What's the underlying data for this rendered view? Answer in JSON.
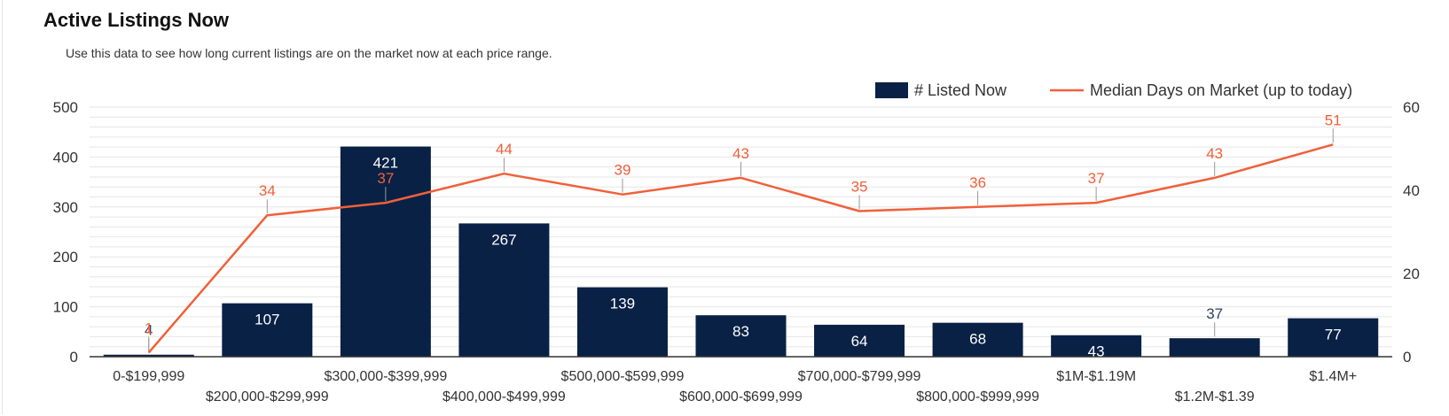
{
  "header": {
    "title": "Active Listings Now",
    "subtitle": "Use this data to see how long current listings are on the market now at each price range."
  },
  "chart_data": {
    "type": "bar",
    "categories": [
      "0-$199,999",
      "$200,000-$299,999",
      "$300,000-$399,999",
      "$400,000-$499,999",
      "$500,000-$599,999",
      "$600,000-$699,999",
      "$700,000-$799,999",
      "$800,000-$999,999",
      "$1M-$1.19M",
      "$1.2M-$1.39",
      "$1.4M+"
    ],
    "series": [
      {
        "name": "# Listed Now",
        "type": "bar",
        "axis": "left",
        "color": "#0a2146",
        "values": [
          4,
          107,
          421,
          267,
          139,
          83,
          64,
          68,
          43,
          37,
          77
        ]
      },
      {
        "name": "Median Days on Market (up to today)",
        "type": "line",
        "axis": "right",
        "color": "#f0603a",
        "values": [
          1,
          34,
          37,
          44,
          39,
          43,
          35,
          36,
          37,
          43,
          51
        ]
      }
    ],
    "y_left": {
      "ticks": [
        0,
        100,
        200,
        300,
        400,
        500
      ],
      "ylim": [
        0,
        500
      ]
    },
    "y_right": {
      "ticks": [
        0,
        20,
        40,
        60
      ],
      "ylim": [
        0,
        60
      ]
    },
    "grid": true,
    "legend_position": "top-right"
  }
}
